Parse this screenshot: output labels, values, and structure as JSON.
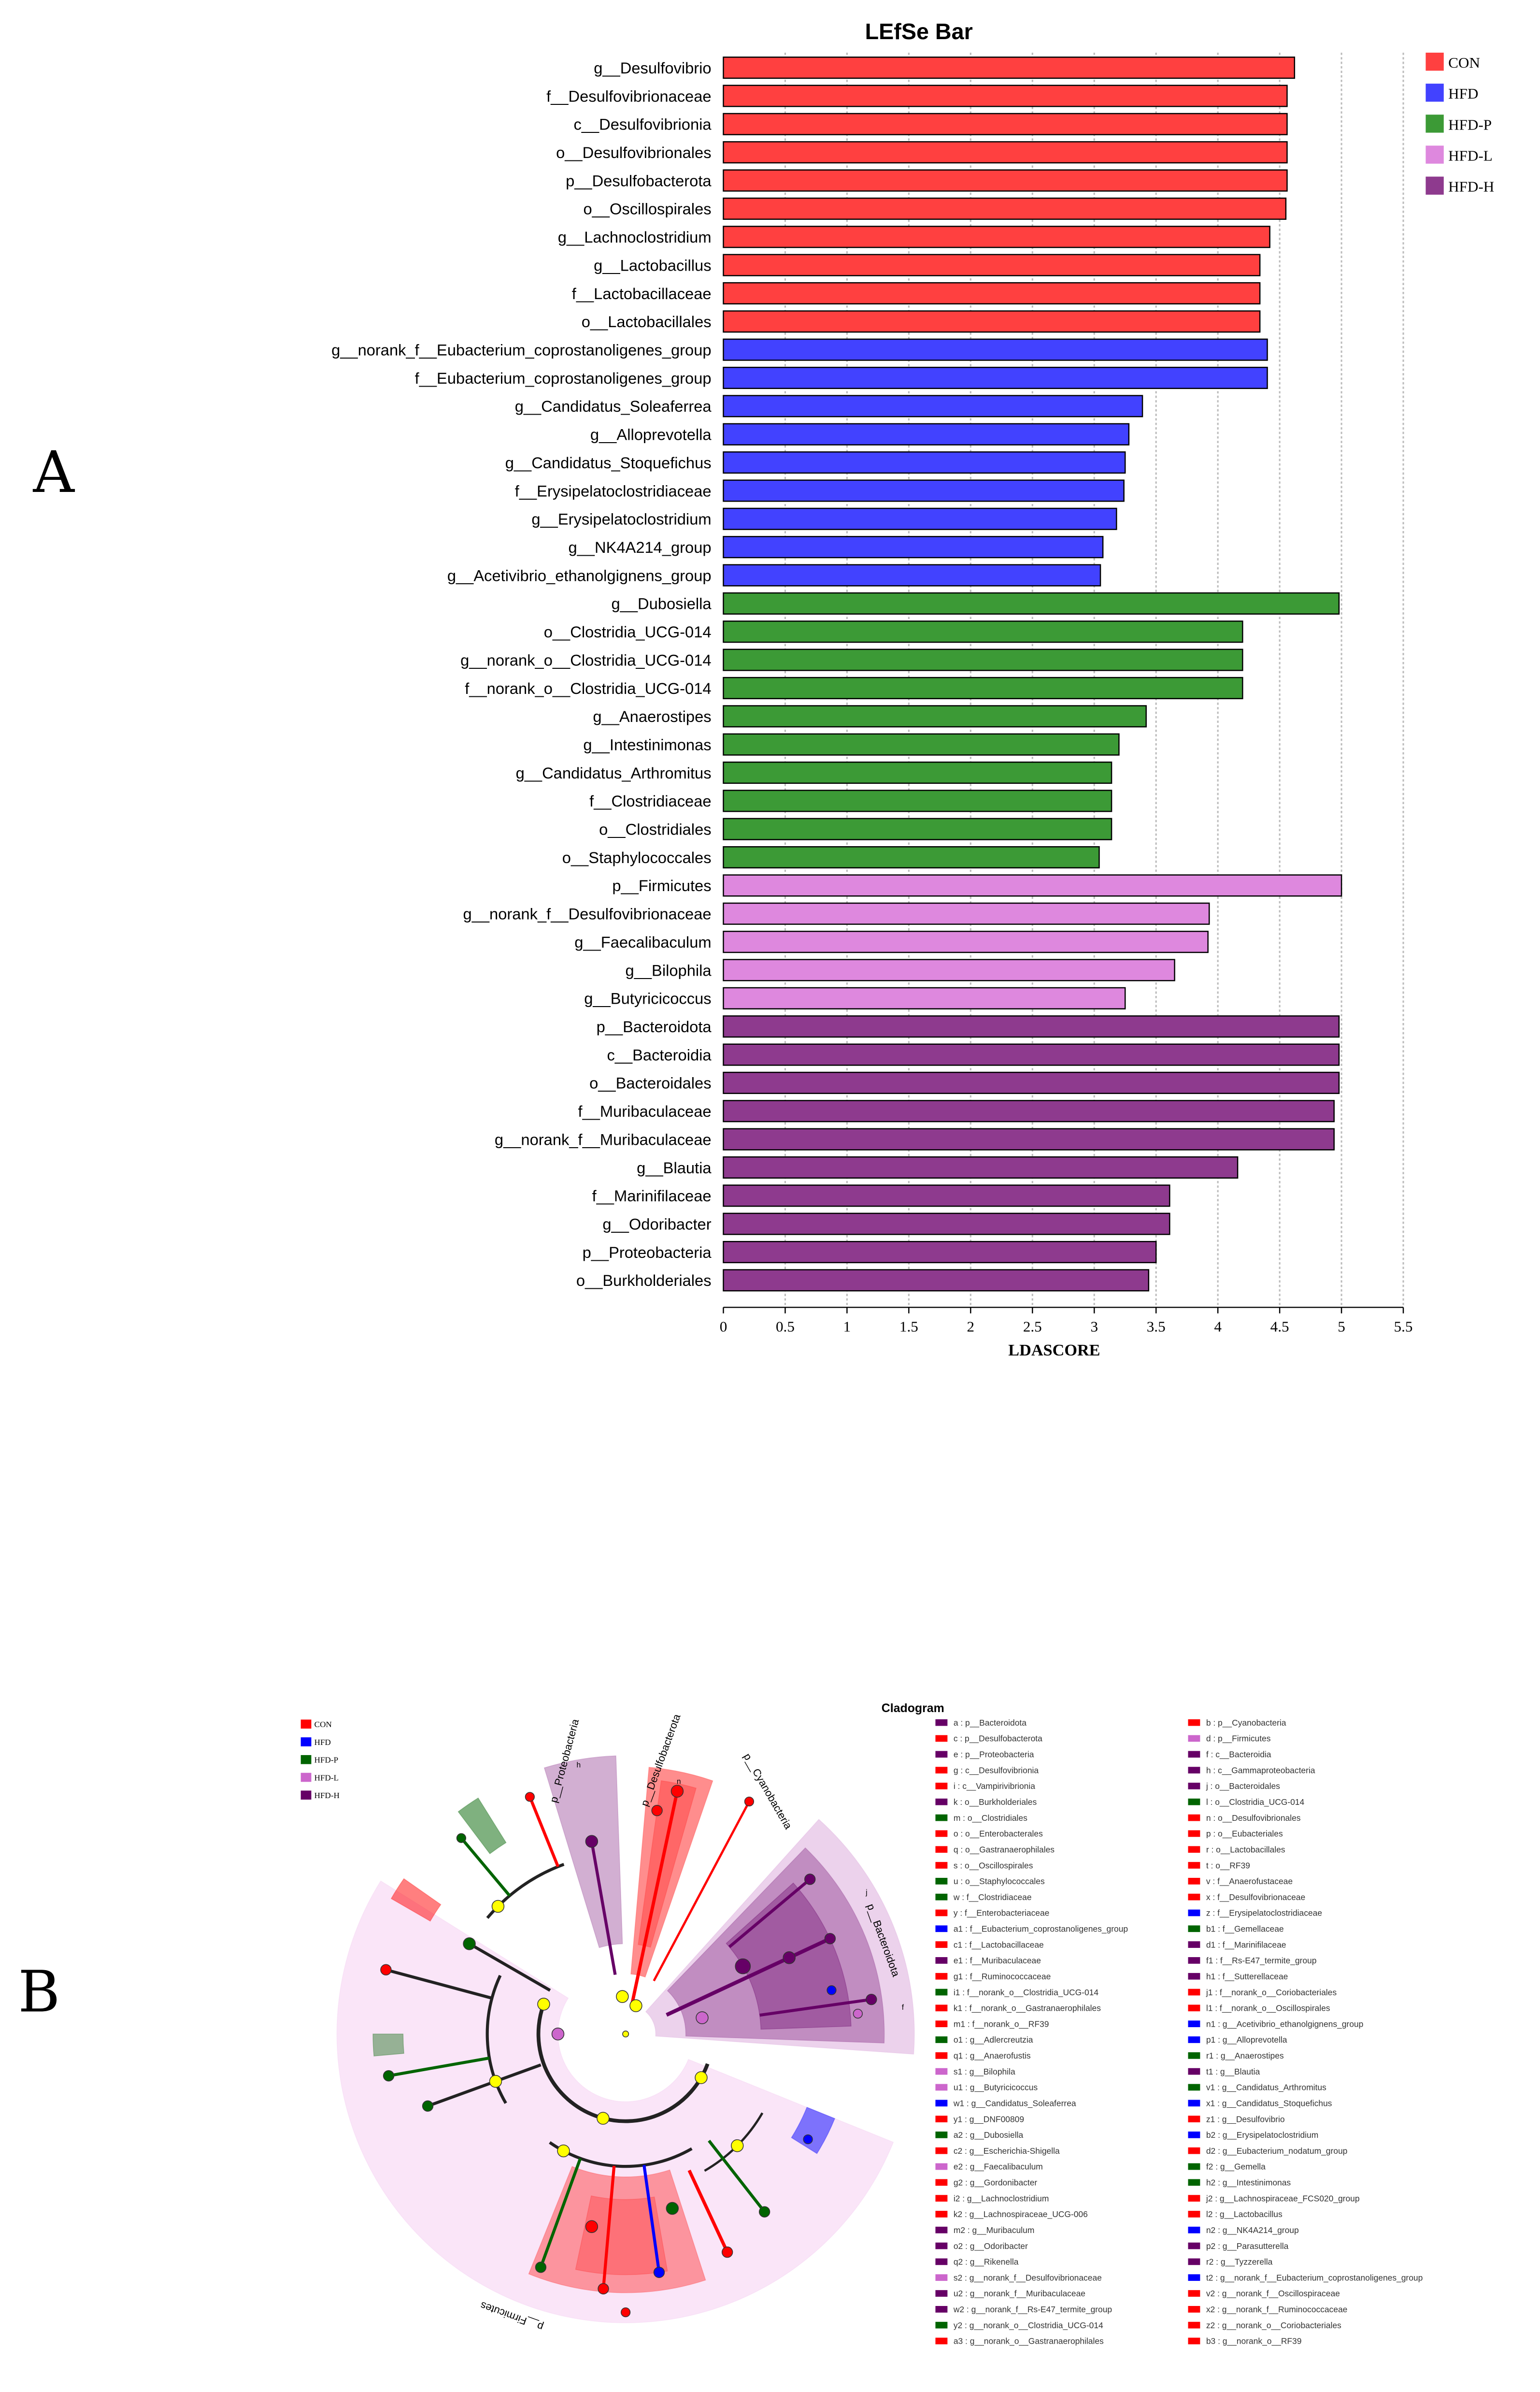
{
  "panels": {
    "a": "A",
    "b": "B"
  },
  "colors": {
    "bar": {
      "CON": "#ff4040",
      "HFD": "#4242ff",
      "HFD-P": "#3c9a36",
      "HFD-L": "#de88de",
      "HFD-H": "#8e3a8e"
    },
    "clado": {
      "CON": "#ff0000",
      "HFD": "#0000ff",
      "HFD-P": "#006400",
      "HFD-L": "#cc66cc",
      "HFD-H": "#660066"
    }
  },
  "chart_data": [
    {
      "type": "bar",
      "orientation": "horizontal",
      "title": "LEfSe Bar",
      "xlabel": "LDASCORE",
      "ylabel": "",
      "xlim": [
        0,
        5.5
      ],
      "xticks": [
        "0",
        "0.5",
        "1",
        "1.5",
        "2",
        "2.5",
        "3",
        "3.5",
        "4",
        "4.5",
        "5",
        "5.5"
      ],
      "grid": "vertical dotted",
      "legend": {
        "position": "top-right",
        "entries": [
          "CON",
          "HFD",
          "HFD-P",
          "HFD-L",
          "HFD-H"
        ]
      },
      "categories": [
        "g__Desulfovibrio",
        "f__Desulfovibrionaceae",
        "c__Desulfovibrionia",
        "o__Desulfovibrionales",
        "p__Desulfobacterota",
        "o__Oscillospirales",
        "g__Lachnoclostridium",
        "g__Lactobacillus",
        "f__Lactobacillaceae",
        "o__Lactobacillales",
        "g__norank_f__Eubacterium_coprostanoligenes_group",
        "f__Eubacterium_coprostanoligenes_group",
        "g__Candidatus_Soleaferrea",
        "g__Alloprevotella",
        "g__Candidatus_Stoquefichus",
        "f__Erysipelatoclostridiaceae",
        "g__Erysipelatoclostridium",
        "g__NK4A214_group",
        "g__Acetivibrio_ethanolgignens_group",
        "g__Dubosiella",
        "o__Clostridia_UCG-014",
        "g__norank_o__Clostridia_UCG-014",
        "f__norank_o__Clostridia_UCG-014",
        "g__Anaerostipes",
        "g__Intestinimonas",
        "g__Candidatus_Arthromitus",
        "f__Clostridiaceae",
        "o__Clostridiales",
        "o__Staphylococcales",
        "p__Firmicutes",
        "g__norank_f__Desulfovibrionaceae",
        "g__Faecalibaculum",
        "g__Bilophila",
        "g__Butyricicoccus",
        "p__Bacteroidota",
        "c__Bacteroidia",
        "o__Bacteroidales",
        "f__Muribaculaceae",
        "g__norank_f__Muribaculaceae",
        "g__Blautia",
        "f__Marinifilaceae",
        "g__Odoribacter",
        "p__Proteobacteria",
        "o__Burkholderiales"
      ],
      "values": [
        4.62,
        4.56,
        4.56,
        4.56,
        4.56,
        4.55,
        4.42,
        4.34,
        4.34,
        4.34,
        4.4,
        4.4,
        3.39,
        3.28,
        3.25,
        3.24,
        3.18,
        3.07,
        3.05,
        4.98,
        4.2,
        4.2,
        4.2,
        3.42,
        3.2,
        3.14,
        3.14,
        3.14,
        3.04,
        5.0,
        3.93,
        3.92,
        3.65,
        3.25,
        4.98,
        4.98,
        4.98,
        4.94,
        4.94,
        4.16,
        3.61,
        3.61,
        3.5,
        3.44
      ],
      "groups": [
        "CON",
        "CON",
        "CON",
        "CON",
        "CON",
        "CON",
        "CON",
        "CON",
        "CON",
        "CON",
        "HFD",
        "HFD",
        "HFD",
        "HFD",
        "HFD",
        "HFD",
        "HFD",
        "HFD",
        "HFD",
        "HFD-P",
        "HFD-P",
        "HFD-P",
        "HFD-P",
        "HFD-P",
        "HFD-P",
        "HFD-P",
        "HFD-P",
        "HFD-P",
        "HFD-P",
        "HFD-L",
        "HFD-L",
        "HFD-L",
        "HFD-L",
        "HFD-L",
        "HFD-H",
        "HFD-H",
        "HFD-H",
        "HFD-H",
        "HFD-H",
        "HFD-H",
        "HFD-H",
        "HFD-H",
        "HFD-H",
        "HFD-H"
      ]
    },
    {
      "type": "cladogram",
      "title": "Cladogram",
      "legend": [
        "CON",
        "HFD",
        "HFD-P",
        "HFD-L",
        "HFD-H"
      ],
      "clade_labels": [
        "p__Proteobacteria",
        "p__Desulfobacterota",
        "p__Cyanobacteria",
        "p__Bacteroidota",
        "p__Firmicutes"
      ],
      "inner_labels": [
        "h",
        "n",
        "f",
        "j"
      ],
      "features_col1": [
        [
          "a : p__Bacteroidota",
          "HFD-H"
        ],
        [
          "c : p__Desulfobacterota",
          "CON"
        ],
        [
          "e : p__Proteobacteria",
          "HFD-H"
        ],
        [
          "g : c__Desulfovibrionia",
          "CON"
        ],
        [
          "i : c__Vampirivibrionia",
          "CON"
        ],
        [
          "k : o__Burkholderiales",
          "HFD-H"
        ],
        [
          "m : o__Clostridiales",
          "HFD-P"
        ],
        [
          "o : o__Enterobacterales",
          "CON"
        ],
        [
          "q : o__Gastranaerophilales",
          "CON"
        ],
        [
          "s : o__Oscillospirales",
          "CON"
        ],
        [
          "u : o__Staphylococcales",
          "HFD-P"
        ],
        [
          "w : f__Clostridiaceae",
          "HFD-P"
        ],
        [
          "y : f__Enterobacteriaceae",
          "CON"
        ],
        [
          "a1 : f__Eubacterium_coprostanoligenes_group",
          "HFD"
        ],
        [
          "c1 : f__Lactobacillaceae",
          "CON"
        ],
        [
          "e1 : f__Muribaculaceae",
          "HFD-H"
        ],
        [
          "g1 : f__Ruminococcaceae",
          "CON"
        ],
        [
          "i1 : f__norank_o__Clostridia_UCG-014",
          "HFD-P"
        ],
        [
          "k1 : f__norank_o__Gastranaerophilales",
          "CON"
        ],
        [
          "m1 : f__norank_o__RF39",
          "CON"
        ],
        [
          "o1 : g__Adlercreutzia",
          "HFD-P"
        ],
        [
          "q1 : g__Anaerofustis",
          "CON"
        ],
        [
          "s1 : g__Bilophila",
          "HFD-L"
        ],
        [
          "u1 : g__Butyricicoccus",
          "HFD-L"
        ],
        [
          "w1 : g__Candidatus_Soleaferrea",
          "HFD"
        ],
        [
          "y1 : g__DNF00809",
          "CON"
        ],
        [
          "a2 : g__Dubosiella",
          "HFD-P"
        ],
        [
          "c2 : g__Escherichia-Shigella",
          "CON"
        ],
        [
          "e2 : g__Faecalibaculum",
          "HFD-L"
        ],
        [
          "g2 : g__Gordonibacter",
          "CON"
        ],
        [
          "i2 : g__Lachnoclostridium",
          "CON"
        ],
        [
          "k2 : g__Lachnospiraceae_UCG-006",
          "CON"
        ],
        [
          "m2 : g__Muribaculum",
          "HFD-H"
        ],
        [
          "o2 : g__Odoribacter",
          "HFD-H"
        ],
        [
          "q2 : g__Rikenella",
          "HFD-H"
        ],
        [
          "s2 : g__norank_f__Desulfovibrionaceae",
          "HFD-L"
        ],
        [
          "u2 : g__norank_f__Muribaculaceae",
          "HFD-H"
        ],
        [
          "w2 : g__norank_f__Rs-E47_termite_group",
          "HFD-H"
        ],
        [
          "y2 : g__norank_o__Clostridia_UCG-014",
          "HFD-P"
        ],
        [
          "a3 : g__norank_o__Gastranaerophilales",
          "CON"
        ]
      ],
      "features_col2": [
        [
          "b : p__Cyanobacteria",
          "CON"
        ],
        [
          "d : p__Firmicutes",
          "HFD-L"
        ],
        [
          "f : c__Bacteroidia",
          "HFD-H"
        ],
        [
          "h : c__Gammaproteobacteria",
          "HFD-H"
        ],
        [
          "j : o__Bacteroidales",
          "HFD-H"
        ],
        [
          "l : o__Clostridia_UCG-014",
          "HFD-P"
        ],
        [
          "n : o__Desulfovibrionales",
          "CON"
        ],
        [
          "p : o__Eubacteriales",
          "CON"
        ],
        [
          "r : o__Lactobacillales",
          "CON"
        ],
        [
          "t : o__RF39",
          "CON"
        ],
        [
          "v : f__Anaerofustaceae",
          "CON"
        ],
        [
          "x : f__Desulfovibrionaceae",
          "CON"
        ],
        [
          "z : f__Erysipelatoclostridiaceae",
          "HFD"
        ],
        [
          "b1 : f__Gemellaceae",
          "HFD-P"
        ],
        [
          "d1 : f__Marinifilaceae",
          "HFD-H"
        ],
        [
          "f1 : f__Rs-E47_termite_group",
          "HFD-H"
        ],
        [
          "h1 : f__Sutterellaceae",
          "HFD-H"
        ],
        [
          "j1 : f__norank_o__Coriobacteriales",
          "CON"
        ],
        [
          "l1 : f__norank_o__Oscillospirales",
          "CON"
        ],
        [
          "n1 : g__Acetivibrio_ethanolgignens_group",
          "HFD"
        ],
        [
          "p1 : g__Alloprevotella",
          "HFD"
        ],
        [
          "r1 : g__Anaerostipes",
          "HFD-P"
        ],
        [
          "t1 : g__Blautia",
          "HFD-H"
        ],
        [
          "v1 : g__Candidatus_Arthromitus",
          "HFD-P"
        ],
        [
          "x1 : g__Candidatus_Stoquefichus",
          "HFD"
        ],
        [
          "z1 : g__Desulfovibrio",
          "CON"
        ],
        [
          "b2 : g__Erysipelatoclostridium",
          "HFD"
        ],
        [
          "d2 : g__Eubacterium_nodatum_group",
          "CON"
        ],
        [
          "f2 : g__Gemella",
          "HFD-P"
        ],
        [
          "h2 : g__Intestinimonas",
          "HFD-P"
        ],
        [
          "j2 : g__Lachnospiraceae_FCS020_group",
          "CON"
        ],
        [
          "l2 : g__Lactobacillus",
          "CON"
        ],
        [
          "n2 : g__NK4A214_group",
          "HFD"
        ],
        [
          "p2 : g__Parasutterella",
          "HFD-H"
        ],
        [
          "r2 : g__Tyzzerella",
          "HFD-H"
        ],
        [
          "t2 : g__norank_f__Eubacterium_coprostanoligenes_group",
          "HFD"
        ],
        [
          "v2 : g__norank_f__Oscillospiraceae",
          "CON"
        ],
        [
          "x2 : g__norank_f__Ruminococcaceae",
          "CON"
        ],
        [
          "z2 : g__norank_o__Coriobacteriales",
          "CON"
        ],
        [
          "b3 : g__norank_o__RF39",
          "CON"
        ]
      ]
    }
  ]
}
